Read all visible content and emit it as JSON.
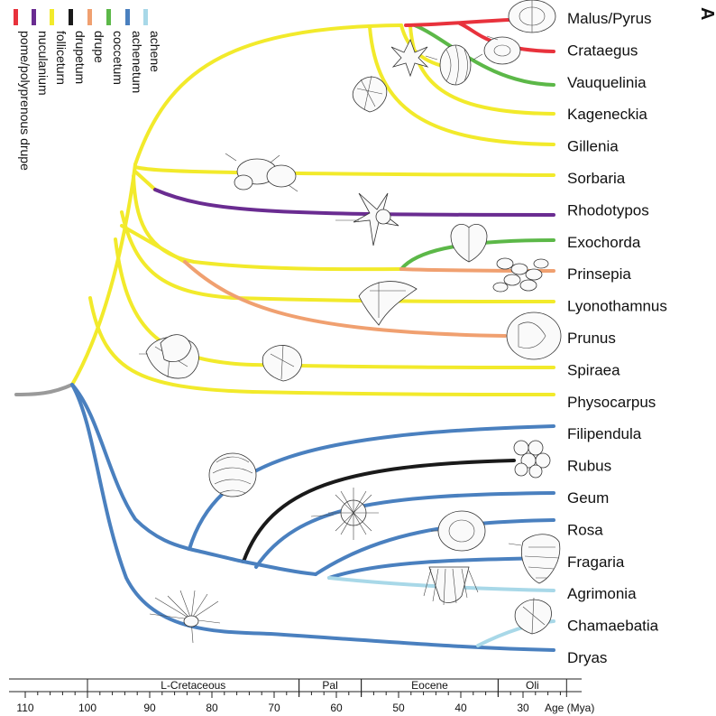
{
  "panel_label": "A",
  "legend": [
    {
      "label": "pome/polyprenous drupe",
      "color": "#e8323c"
    },
    {
      "label": "nuculanium",
      "color": "#6a2c91"
    },
    {
      "label": "folliceturn",
      "color": "#f2ea2b"
    },
    {
      "label": "drupetum",
      "color": "#1a1a1a"
    },
    {
      "label": "drupe",
      "color": "#f0a070"
    },
    {
      "label": "coccetum",
      "color": "#5cb848"
    },
    {
      "label": "achenetum",
      "color": "#4a80bf"
    },
    {
      "label": "achene",
      "color": "#a8d8e8"
    }
  ],
  "colors": {
    "root": "#9a9a9a",
    "pome": "#e8323c",
    "nuculanium": "#6a2c91",
    "follicetum": "#f2ea2b",
    "drupetum": "#1a1a1a",
    "drupe": "#f0a070",
    "coccetum": "#5cb848",
    "achenetum": "#4a80bf",
    "achene": "#a8d8e8"
  },
  "taxa": [
    "Malus/Pyrus",
    "Crataegus",
    "Vauquelinia",
    "Kageneckia",
    "Gillenia",
    "Sorbaria",
    "Rhodotypos",
    "Exochorda",
    "Prinsepia",
    "Lyonothamnus",
    "Prunus",
    "Spiraea",
    "Physocarpus",
    "Filipendula",
    "Rubus",
    "Geum",
    "Rosa",
    "Fragaria",
    "Agrimonia",
    "Chamaebatia",
    "Dryas"
  ],
  "timescale": {
    "periods": [
      {
        "label": "L-Cretaceous",
        "start": 100,
        "end": 66
      },
      {
        "label": "Pal",
        "start": 66,
        "end": 56
      },
      {
        "label": "Eocene",
        "start": 56,
        "end": 34
      },
      {
        "label": "Oli",
        "start": 34,
        "end": 23
      }
    ],
    "ticks": [
      "110",
      "100",
      "90",
      "80",
      "70",
      "60",
      "50",
      "40",
      "30"
    ],
    "axis_label": "Age (Mya)"
  }
}
